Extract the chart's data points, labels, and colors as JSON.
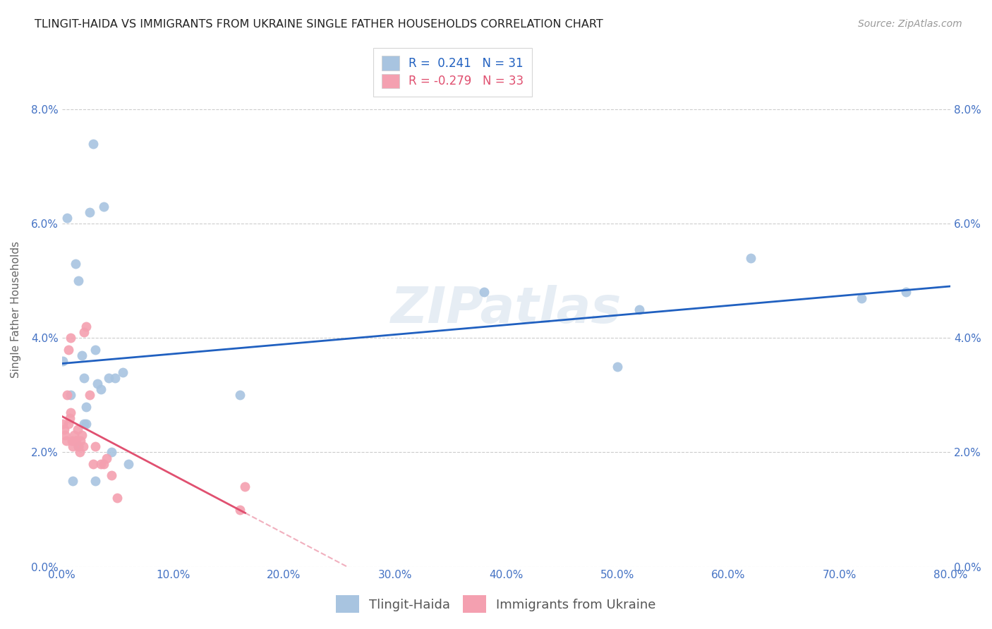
{
  "title": "TLINGIT-HAIDA VS IMMIGRANTS FROM UKRAINE SINGLE FATHER HOUSEHOLDS CORRELATION CHART",
  "source": "Source: ZipAtlas.com",
  "ylabel": "Single Father Households",
  "xlim": [
    0,
    0.8
  ],
  "ylim": [
    0,
    0.09
  ],
  "yticks": [
    0.0,
    0.02,
    0.04,
    0.06,
    0.08
  ],
  "ytick_labels": [
    "0.0%",
    "2.0%",
    "4.0%",
    "6.0%",
    "8.0%"
  ],
  "xticks": [
    0.0,
    0.1,
    0.2,
    0.3,
    0.4,
    0.5,
    0.6,
    0.7,
    0.8
  ],
  "xtick_labels": [
    "0.0%",
    "10.0%",
    "20.0%",
    "30.0%",
    "40.0%",
    "50.0%",
    "60.0%",
    "70.0%",
    "80.0%"
  ],
  "r_blue": 0.241,
  "n_blue": 31,
  "r_pink": -0.279,
  "n_pink": 33,
  "blue_scatter_x": [
    0.001,
    0.005,
    0.008,
    0.01,
    0.012,
    0.015,
    0.015,
    0.018,
    0.02,
    0.02,
    0.022,
    0.022,
    0.025,
    0.028,
    0.03,
    0.03,
    0.032,
    0.035,
    0.038,
    0.042,
    0.048,
    0.055,
    0.16,
    0.38,
    0.5,
    0.52,
    0.62,
    0.72,
    0.76,
    0.045,
    0.06
  ],
  "blue_scatter_y": [
    0.036,
    0.061,
    0.03,
    0.015,
    0.053,
    0.05,
    0.021,
    0.037,
    0.025,
    0.033,
    0.025,
    0.028,
    0.062,
    0.074,
    0.038,
    0.015,
    0.032,
    0.031,
    0.063,
    0.033,
    0.033,
    0.034,
    0.03,
    0.048,
    0.035,
    0.045,
    0.054,
    0.047,
    0.048,
    0.02,
    0.018
  ],
  "pink_scatter_x": [
    0.001,
    0.002,
    0.003,
    0.004,
    0.005,
    0.006,
    0.006,
    0.007,
    0.008,
    0.008,
    0.009,
    0.01,
    0.011,
    0.012,
    0.013,
    0.014,
    0.015,
    0.016,
    0.017,
    0.018,
    0.019,
    0.02,
    0.022,
    0.025,
    0.028,
    0.03,
    0.035,
    0.038,
    0.04,
    0.045,
    0.05,
    0.16,
    0.165
  ],
  "pink_scatter_y": [
    0.025,
    0.024,
    0.023,
    0.022,
    0.03,
    0.025,
    0.038,
    0.026,
    0.027,
    0.04,
    0.022,
    0.021,
    0.023,
    0.022,
    0.022,
    0.024,
    0.021,
    0.02,
    0.022,
    0.023,
    0.021,
    0.041,
    0.042,
    0.03,
    0.018,
    0.021,
    0.018,
    0.018,
    0.019,
    0.016,
    0.012,
    0.01,
    0.014
  ],
  "blue_color": "#a8c4e0",
  "pink_color": "#f4a0b0",
  "blue_line_color": "#2060c0",
  "pink_line_color": "#e05070",
  "watermark": "ZIPatlas",
  "background_color": "#ffffff",
  "legend_r_labels": [
    "R =  0.241   N = 31",
    "R = -0.279   N = 33"
  ],
  "legend_bottom_labels": [
    "Tlingit-Haida",
    "Immigrants from Ukraine"
  ]
}
